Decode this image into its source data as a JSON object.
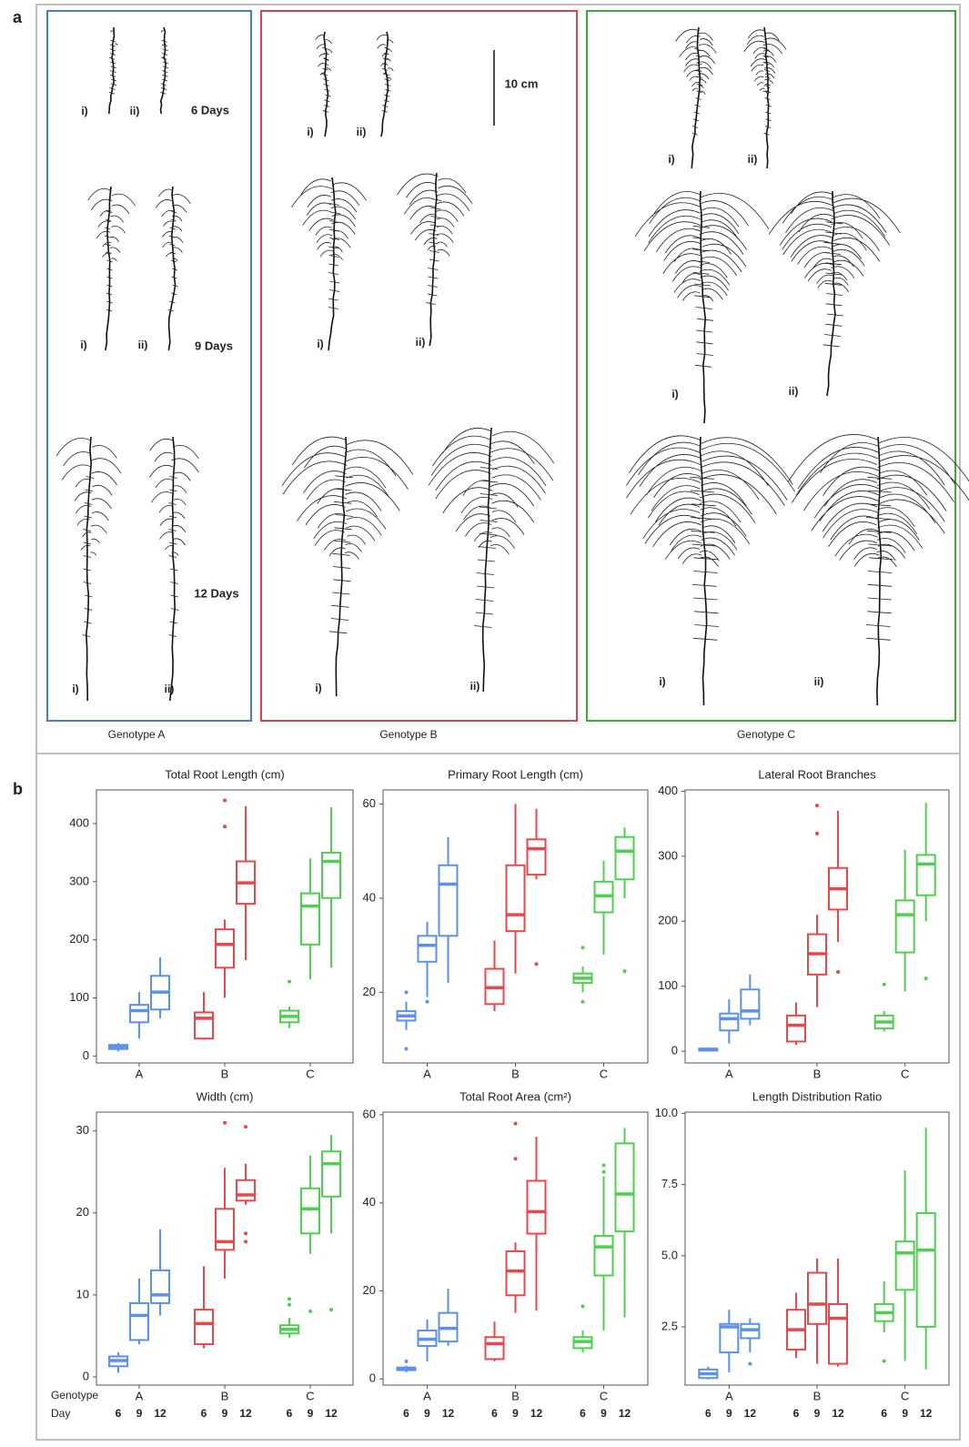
{
  "panel_a": {
    "label": "a",
    "genotype_labels": [
      "Genotype A",
      "Genotype B",
      "Genotype C"
    ],
    "day_labels": [
      "6 Days",
      "9 Days",
      "12 Days"
    ],
    "replicate_labels": [
      "i)",
      "ii)"
    ],
    "scale_bar": "10 cm"
  },
  "panel_b": {
    "label": "b",
    "row_labels": [
      "Genotype",
      "Day"
    ]
  },
  "chart_data": [
    {
      "type": "box",
      "title": "Total Root Length (cm)",
      "categories": [
        "A",
        "B",
        "C"
      ],
      "colors": [
        "#5b8ff0",
        "#e8474c",
        "#4fcf4f"
      ],
      "ylim": [
        -12,
        458
      ],
      "yticks": [
        0,
        100,
        200,
        300,
        400
      ],
      "boxes": [
        [
          {
            "low": 8,
            "q1": 12,
            "median": 16,
            "q3": 19,
            "high": 22,
            "outliers": []
          },
          {
            "low": 30,
            "q1": 58,
            "median": 78,
            "q3": 88,
            "high": 110,
            "outliers": []
          },
          {
            "low": 65,
            "q1": 80,
            "median": 110,
            "q3": 138,
            "high": 170,
            "outliers": []
          }
        ],
        [
          {
            "low": 28,
            "q1": 30,
            "median": 65,
            "q3": 75,
            "high": 110,
            "outliers": []
          },
          {
            "low": 100,
            "q1": 152,
            "median": 192,
            "q3": 218,
            "high": 235,
            "outliers": [
              395,
              440
            ]
          },
          {
            "low": 165,
            "q1": 262,
            "median": 298,
            "q3": 335,
            "high": 430,
            "outliers": []
          }
        ],
        [
          {
            "low": 48,
            "q1": 58,
            "median": 68,
            "q3": 78,
            "high": 85,
            "outliers": [
              128
            ]
          },
          {
            "low": 132,
            "q1": 192,
            "median": 258,
            "q3": 280,
            "high": 340,
            "outliers": []
          },
          {
            "low": 152,
            "q1": 272,
            "median": 335,
            "q3": 350,
            "high": 428,
            "outliers": []
          }
        ]
      ]
    },
    {
      "type": "box",
      "title": "Primary Root Length (cm)",
      "categories": [
        "A",
        "B",
        "C"
      ],
      "colors": [
        "#5b8ff0",
        "#e8474c",
        "#4fcf4f"
      ],
      "ylim": [
        5,
        63
      ],
      "yticks": [
        20,
        40,
        60
      ],
      "boxes": [
        [
          {
            "low": 12,
            "q1": 14,
            "median": 15,
            "q3": 16,
            "high": 18,
            "outliers": [
              8,
              20
            ]
          },
          {
            "low": 19,
            "q1": 26.5,
            "median": 30,
            "q3": 32,
            "high": 35,
            "outliers": [
              18
            ]
          },
          {
            "low": 22,
            "q1": 32,
            "median": 43,
            "q3": 47,
            "high": 53,
            "outliers": []
          }
        ],
        [
          {
            "low": 16,
            "q1": 17.5,
            "median": 21,
            "q3": 25,
            "high": 31,
            "outliers": []
          },
          {
            "low": 24,
            "q1": 33,
            "median": 36.5,
            "q3": 47,
            "high": 60,
            "outliers": []
          },
          {
            "low": 44,
            "q1": 45,
            "median": 50.5,
            "q3": 52.5,
            "high": 59,
            "outliers": [
              26
            ]
          }
        ],
        [
          {
            "low": 20,
            "q1": 22,
            "median": 23,
            "q3": 24,
            "high": 25.5,
            "outliers": [
              18,
              29.5
            ]
          },
          {
            "low": 28,
            "q1": 37,
            "median": 40.5,
            "q3": 43.5,
            "high": 48,
            "outliers": []
          },
          {
            "low": 40,
            "q1": 44,
            "median": 50,
            "q3": 53,
            "high": 55,
            "outliers": [
              24.5
            ]
          }
        ]
      ]
    },
    {
      "type": "box",
      "title": "Lateral Root Branches",
      "categories": [
        "A",
        "B",
        "C"
      ],
      "colors": [
        "#5b8ff0",
        "#e8474c",
        "#4fcf4f"
      ],
      "ylim": [
        -18,
        402
      ],
      "yticks": [
        0,
        100,
        200,
        300,
        400
      ],
      "boxes": [
        [
          {
            "low": 0,
            "q1": 1,
            "median": 3,
            "q3": 4,
            "high": 6,
            "outliers": []
          },
          {
            "low": 12,
            "q1": 32,
            "median": 50,
            "q3": 58,
            "high": 80,
            "outliers": []
          },
          {
            "low": 40,
            "q1": 50,
            "median": 62,
            "q3": 95,
            "high": 118,
            "outliers": []
          }
        ],
        [
          {
            "low": 10,
            "q1": 15,
            "median": 40,
            "q3": 55,
            "high": 75,
            "outliers": []
          },
          {
            "low": 68,
            "q1": 118,
            "median": 150,
            "q3": 180,
            "high": 210,
            "outliers": [
              335,
              378
            ]
          },
          {
            "low": 168,
            "q1": 218,
            "median": 250,
            "q3": 282,
            "high": 370,
            "outliers": [
              122
            ]
          }
        ],
        [
          {
            "low": 30,
            "q1": 35,
            "median": 45,
            "q3": 55,
            "high": 62,
            "outliers": [
              103
            ]
          },
          {
            "low": 92,
            "q1": 152,
            "median": 210,
            "q3": 232,
            "high": 310,
            "outliers": []
          },
          {
            "low": 200,
            "q1": 240,
            "median": 288,
            "q3": 302,
            "high": 382,
            "outliers": [
              112
            ]
          }
        ]
      ]
    },
    {
      "type": "box",
      "title": "Width (cm)",
      "categories": [
        "A",
        "B",
        "C"
      ],
      "colors": [
        "#5b8ff0",
        "#e8474c",
        "#4fcf4f"
      ],
      "ylim": [
        -1,
        32.3
      ],
      "yticks": [
        0,
        10,
        20,
        30
      ],
      "days": [
        6,
        9,
        12
      ],
      "boxes": [
        [
          {
            "low": 0.5,
            "q1": 1.3,
            "median": 2,
            "q3": 2.5,
            "high": 3,
            "outliers": []
          },
          {
            "low": 4,
            "q1": 4.5,
            "median": 7.5,
            "q3": 9,
            "high": 12,
            "outliers": []
          },
          {
            "low": 7.5,
            "q1": 9,
            "median": 10,
            "q3": 13,
            "high": 18,
            "outliers": []
          }
        ],
        [
          {
            "low": 3.5,
            "q1": 4,
            "median": 6.5,
            "q3": 8.2,
            "high": 13.5,
            "outliers": []
          },
          {
            "low": 12,
            "q1": 15.5,
            "median": 16.5,
            "q3": 20.5,
            "high": 25.5,
            "outliers": [
              31
            ]
          },
          {
            "low": 21,
            "q1": 21.5,
            "median": 22.2,
            "q3": 24,
            "high": 26,
            "outliers": [
              30.5,
              17.5,
              16.5
            ]
          }
        ],
        [
          {
            "low": 4.8,
            "q1": 5.3,
            "median": 5.8,
            "q3": 6.3,
            "high": 7.2,
            "outliers": [
              8.8,
              9.5
            ]
          },
          {
            "low": 15,
            "q1": 17.5,
            "median": 20.5,
            "q3": 23,
            "high": 27,
            "outliers": [
              8
            ]
          },
          {
            "low": 17.5,
            "q1": 22,
            "median": 26,
            "q3": 27.5,
            "high": 29.5,
            "outliers": [
              8.2
            ]
          }
        ]
      ]
    },
    {
      "type": "box",
      "title": "Total Root Area (cm²)",
      "categories": [
        "A",
        "B",
        "C"
      ],
      "colors": [
        "#5b8ff0",
        "#e8474c",
        "#4fcf4f"
      ],
      "ylim": [
        -1.4,
        60.6
      ],
      "yticks": [
        0,
        20,
        40,
        60
      ],
      "days": [
        6,
        9,
        12
      ],
      "boxes": [
        [
          {
            "low": 1.5,
            "q1": 2,
            "median": 2.2,
            "q3": 2.6,
            "high": 3,
            "outliers": [
              4
            ]
          },
          {
            "low": 4,
            "q1": 7.5,
            "median": 9,
            "q3": 11,
            "high": 13.5,
            "outliers": []
          },
          {
            "low": 7.5,
            "q1": 8.5,
            "median": 11.5,
            "q3": 15,
            "high": 20.5,
            "outliers": []
          }
        ],
        [
          {
            "low": 4,
            "q1": 4.5,
            "median": 8,
            "q3": 9.5,
            "high": 13,
            "outliers": []
          },
          {
            "low": 15,
            "q1": 19,
            "median": 24.5,
            "q3": 29,
            "high": 31,
            "outliers": [
              50,
              58
            ]
          },
          {
            "low": 15.5,
            "q1": 33,
            "median": 38,
            "q3": 45,
            "high": 55,
            "outliers": []
          }
        ],
        [
          {
            "low": 6,
            "q1": 7,
            "median": 8.5,
            "q3": 9.5,
            "high": 11,
            "outliers": [
              16.5
            ]
          },
          {
            "low": 11,
            "q1": 23.5,
            "median": 30,
            "q3": 32.5,
            "high": 46,
            "outliers": [
              47,
              48.5
            ]
          },
          {
            "low": 14,
            "q1": 33.5,
            "median": 42,
            "q3": 53.5,
            "high": 57,
            "outliers": []
          }
        ]
      ]
    },
    {
      "type": "box",
      "title": "Length Distribution Ratio",
      "categories": [
        "A",
        "B",
        "C"
      ],
      "colors": [
        "#5b8ff0",
        "#e8474c",
        "#4fcf4f"
      ],
      "ylim": [
        0.45,
        10.05
      ],
      "yticks": [
        2.5,
        {
          "value": 5,
          "label": "5.0"
        },
        7.5,
        {
          "value": 10,
          "label": "10.0"
        }
      ],
      "days": [
        6,
        9,
        12
      ],
      "boxes": [
        [
          {
            "low": 0.65,
            "q1": 0.7,
            "median": 0.85,
            "q3": 1,
            "high": 1.1,
            "outliers": []
          },
          {
            "low": 0.9,
            "q1": 1.6,
            "median": 2.5,
            "q3": 2.6,
            "high": 3.1,
            "outliers": []
          },
          {
            "low": 1.6,
            "q1": 2.1,
            "median": 2.4,
            "q3": 2.6,
            "high": 2.8,
            "outliers": [
              1.2
            ]
          }
        ],
        [
          {
            "low": 1.4,
            "q1": 1.7,
            "median": 2.4,
            "q3": 3.1,
            "high": 3.7,
            "outliers": []
          },
          {
            "low": 1.2,
            "q1": 2.6,
            "median": 3.3,
            "q3": 4.4,
            "high": 4.9,
            "outliers": []
          },
          {
            "low": 1.1,
            "q1": 1.2,
            "median": 2.8,
            "q3": 3.3,
            "high": 4.9,
            "outliers": []
          }
        ],
        [
          {
            "low": 2.3,
            "q1": 2.7,
            "median": 3,
            "q3": 3.3,
            "high": 4.1,
            "outliers": [
              1.3
            ]
          },
          {
            "low": 1.3,
            "q1": 3.8,
            "median": 5.1,
            "q3": 5.5,
            "high": 8,
            "outliers": []
          },
          {
            "low": 1,
            "q1": 2.5,
            "median": 5.2,
            "q3": 6.5,
            "high": 9.5,
            "outliers": []
          }
        ]
      ]
    }
  ]
}
